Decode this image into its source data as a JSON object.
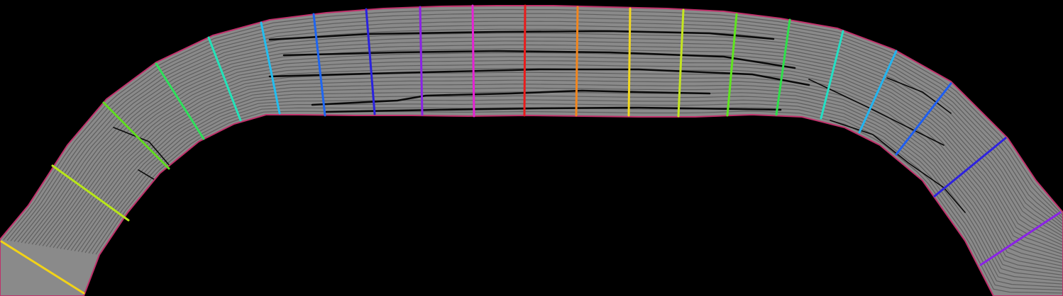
{
  "scene": {
    "background_color": "#000000",
    "band_fill": "#8a8a8a",
    "band_outline_color": "#c0306a",
    "layer_line_color": "#5f5f5f",
    "crack_color": "#0a0a0a",
    "markers": [
      {
        "name": "marker-1",
        "color": "#f2d318"
      },
      {
        "name": "marker-2",
        "color": "#b8e619"
      },
      {
        "name": "marker-3",
        "color": "#5fdc1e"
      },
      {
        "name": "marker-4",
        "color": "#2ee05a"
      },
      {
        "name": "marker-5",
        "color": "#22e3b9"
      },
      {
        "name": "marker-6",
        "color": "#22bdf0"
      },
      {
        "name": "marker-7",
        "color": "#1e66f2"
      },
      {
        "name": "marker-8",
        "color": "#2a22e0"
      },
      {
        "name": "marker-9",
        "color": "#8a22e6"
      },
      {
        "name": "marker-10",
        "color": "#e622d4"
      },
      {
        "name": "marker-11",
        "color": "#ea1c1c"
      },
      {
        "name": "marker-12",
        "color": "#f2861e"
      },
      {
        "name": "marker-13",
        "color": "#f2d81e"
      },
      {
        "name": "marker-14",
        "color": "#c4e61e"
      },
      {
        "name": "marker-15",
        "color": "#5ee61e"
      },
      {
        "name": "marker-16",
        "color": "#2ee04a"
      },
      {
        "name": "marker-17",
        "color": "#22e0c4"
      },
      {
        "name": "marker-18",
        "color": "#22b4f0"
      },
      {
        "name": "marker-19",
        "color": "#1e5ef2"
      },
      {
        "name": "marker-20",
        "color": "#2e22e0"
      },
      {
        "name": "marker-21",
        "color": "#8a22e6"
      }
    ]
  }
}
